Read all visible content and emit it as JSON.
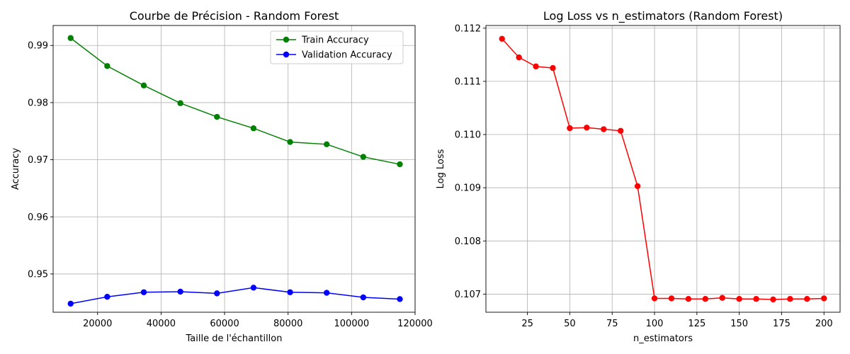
{
  "chart_data": [
    {
      "type": "line",
      "title": "Courbe de Précision - Random Forest",
      "xlabel": "Taille de l'échantillon",
      "ylabel": "Accuracy",
      "xlim": [
        6000,
        120000
      ],
      "ylim": [
        0.9433,
        0.9935
      ],
      "xticks": [
        20000,
        40000,
        60000,
        80000,
        100000,
        120000
      ],
      "yticks": [
        0.95,
        0.96,
        0.97,
        0.98,
        0.99
      ],
      "ytick_labels": [
        "0.95",
        "0.96",
        "0.97",
        "0.98",
        "0.99"
      ],
      "grid": true,
      "legend_position": "top-right",
      "x": [
        11520,
        23040,
        34560,
        46080,
        57600,
        69120,
        80640,
        92160,
        103680,
        115200
      ],
      "series": [
        {
          "name": "Train Accuracy",
          "color": "#008000",
          "values": [
            0.9913,
            0.9864,
            0.983,
            0.9799,
            0.9775,
            0.9755,
            0.9731,
            0.9727,
            0.9705,
            0.9692
          ]
        },
        {
          "name": "Validation Accuracy",
          "color": "#0000ff",
          "values": [
            0.9448,
            0.946,
            0.9468,
            0.9469,
            0.9466,
            0.9476,
            0.9468,
            0.9467,
            0.9459,
            0.9456
          ]
        }
      ]
    },
    {
      "type": "line",
      "title": "Log Loss vs n_estimators (Random Forest)",
      "xlabel": "n_estimators",
      "ylabel": "Log Loss",
      "xlim": [
        0.5,
        209.5
      ],
      "ylim": [
        0.10666,
        0.11205
      ],
      "xticks": [
        25,
        50,
        75,
        100,
        125,
        150,
        175,
        200
      ],
      "yticks": [
        0.107,
        0.108,
        0.109,
        0.11,
        0.111,
        0.112
      ],
      "ytick_labels": [
        "0.107",
        "0.108",
        "0.109",
        "0.110",
        "0.111",
        "0.112"
      ],
      "grid": true,
      "x": [
        10,
        20,
        30,
        40,
        50,
        60,
        70,
        80,
        90,
        100,
        110,
        120,
        130,
        140,
        150,
        160,
        170,
        180,
        190,
        200
      ],
      "series": [
        {
          "color": "#ff0000",
          "values": [
            0.1118,
            0.11145,
            0.11128,
            0.11125,
            0.11012,
            0.11013,
            0.1101,
            0.11007,
            0.10903,
            0.10692,
            0.10692,
            0.10691,
            0.10691,
            0.10693,
            0.10691,
            0.10691,
            0.1069,
            0.10691,
            0.10691,
            0.10692
          ]
        }
      ]
    }
  ]
}
